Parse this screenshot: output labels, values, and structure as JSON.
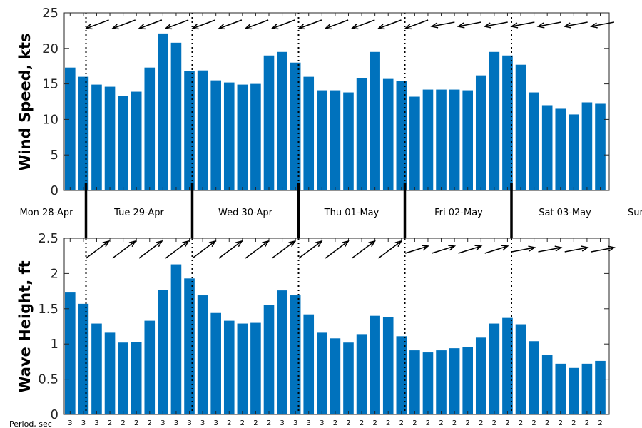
{
  "chart_data": [
    {
      "type": "bar",
      "ylabel": "Wind Speed, kts",
      "ylim": [
        0,
        25
      ],
      "yticks": [
        0,
        5,
        10,
        15,
        20,
        25
      ],
      "bar_color": "#0072bd",
      "values": [
        17.3,
        16.0,
        14.9,
        14.6,
        13.3,
        13.9,
        17.3,
        22.1,
        20.8,
        16.8,
        16.9,
        15.5,
        15.2,
        14.9,
        15.0,
        19.0,
        19.5,
        18.0,
        16.0,
        14.1,
        14.1,
        13.8,
        15.8,
        19.5,
        15.7,
        15.4,
        13.2,
        14.2,
        14.2,
        14.2,
        14.1,
        16.2,
        19.5,
        19.0,
        17.7,
        13.8,
        12.0,
        11.5,
        10.7,
        12.4,
        12.2
      ],
      "direction_arrows": "pointing left / down-left (wind)",
      "grid": false
    },
    {
      "type": "bar",
      "ylabel": "Wave Height, ft",
      "ylim": [
        0,
        2.5
      ],
      "yticks": [
        "0",
        "0.5",
        "1",
        "1.5",
        "2",
        "2.5"
      ],
      "bar_color": "#0072bd",
      "values": [
        1.73,
        1.57,
        1.29,
        1.16,
        1.02,
        1.03,
        1.33,
        1.77,
        2.13,
        1.93,
        1.69,
        1.44,
        1.33,
        1.29,
        1.3,
        1.55,
        1.76,
        1.69,
        1.42,
        1.16,
        1.08,
        1.02,
        1.14,
        1.4,
        1.38,
        1.11,
        0.91,
        0.88,
        0.91,
        0.94,
        0.96,
        1.09,
        1.29,
        1.37,
        1.28,
        1.04,
        0.84,
        0.72,
        0.66,
        0.72,
        0.76
      ],
      "direction_arrows": "pointing right / up-right (waves)",
      "grid": false
    }
  ],
  "days": [
    "Mon 28-Apr",
    "Tue 29-Apr",
    "Wed 30-Apr",
    "Thu 01-May",
    "Fri 02-May",
    "Sat 03-May",
    "Sun"
  ],
  "period": {
    "title": "Period, sec",
    "values": [
      "3",
      "3",
      "3",
      "2",
      "2",
      "2",
      "2",
      "3",
      "3",
      "3",
      "3",
      "3",
      "2",
      "2",
      "2",
      "2",
      "3",
      "3",
      "3",
      "3",
      "2",
      "2",
      "2",
      "2",
      "2",
      "2",
      "2",
      "2",
      "2",
      "2",
      "2",
      "2",
      "2",
      "2",
      "2",
      "2",
      "2",
      "2",
      "2",
      "2",
      "2"
    ]
  }
}
